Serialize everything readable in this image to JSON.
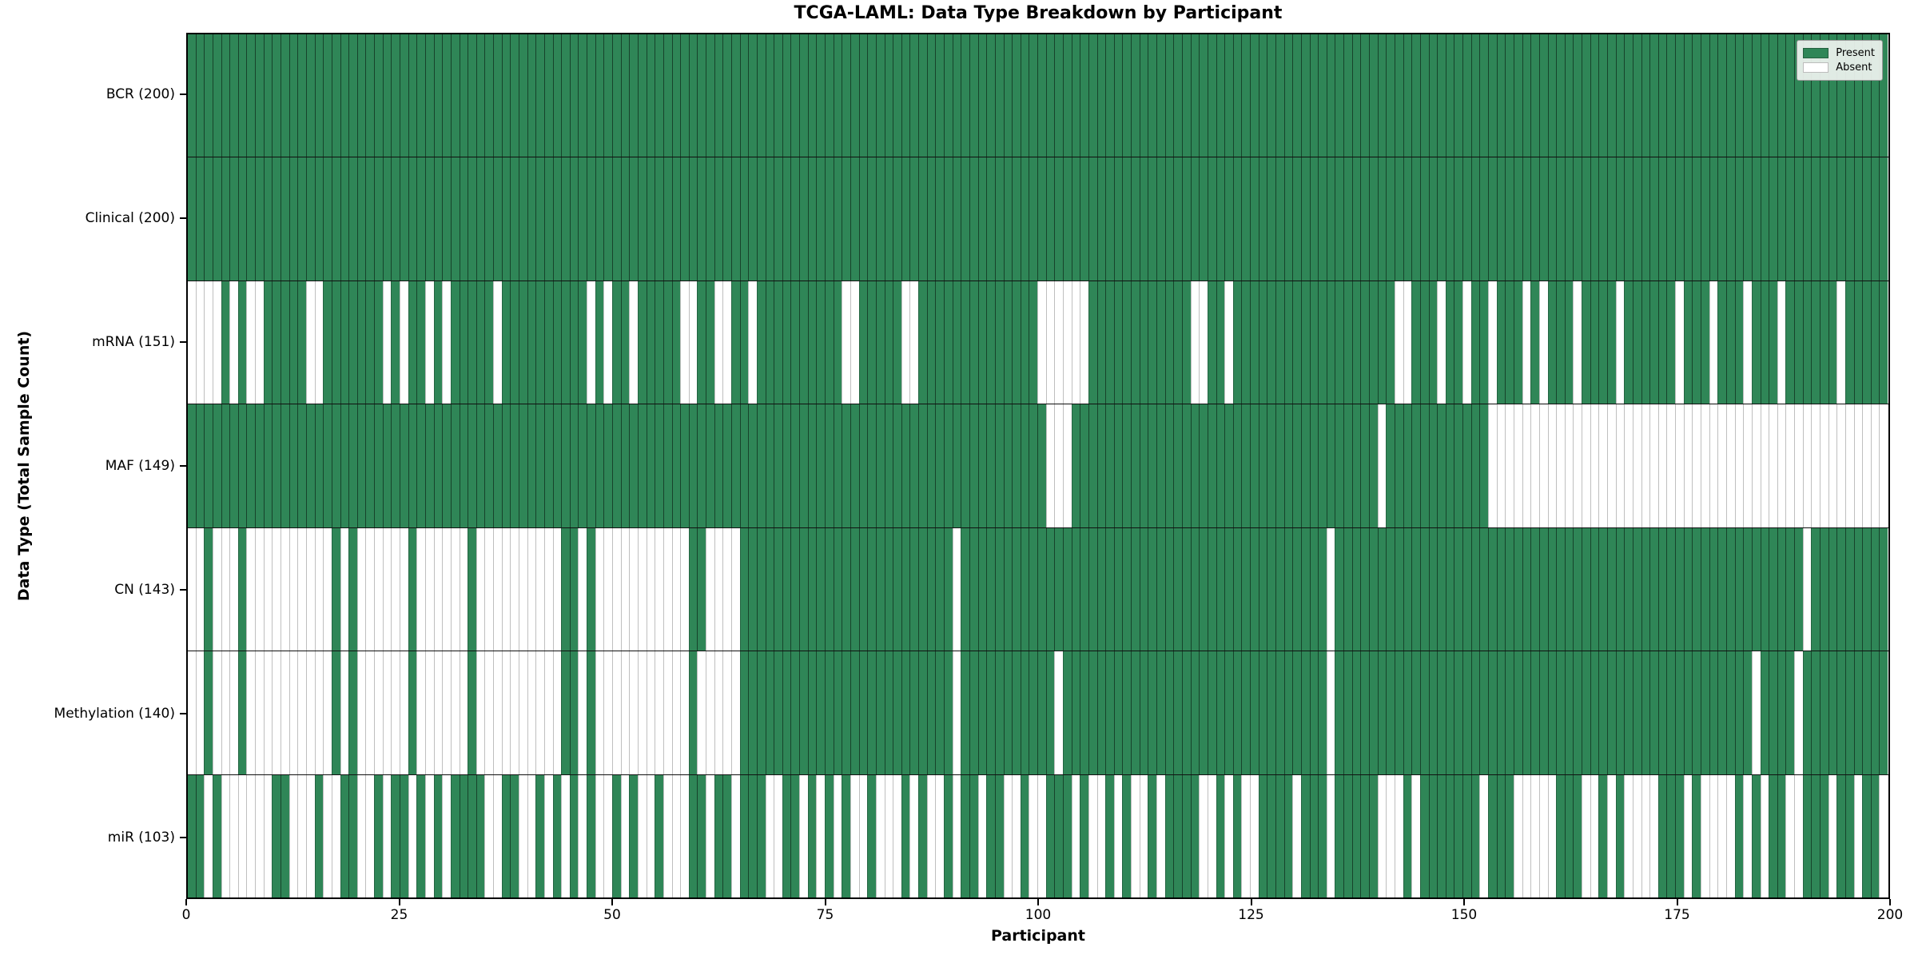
{
  "title": "TCGA-LAML: Data Type Breakdown by Participant",
  "xlabel": "Participant",
  "ylabel": "Data Type (Total Sample Count)",
  "legend": {
    "present_label": "Present",
    "absent_label": "Absent"
  },
  "colors": {
    "present": "#2f8657",
    "absent": "#ffffff",
    "grid_on_present": "rgba(0,0,0,0.5)",
    "grid_on_absent": "rgba(0,0,0,0.25)",
    "row_separator": "#111111",
    "legend_bg": "rgba(240,244,240,0.92)"
  },
  "chart_data": {
    "type": "heatmap",
    "title": "TCGA-LAML: Data Type Breakdown by Participant",
    "xlabel": "Participant",
    "ylabel": "Data Type (Total Sample Count)",
    "n_participants": 200,
    "x_ticks": [
      0,
      25,
      50,
      75,
      100,
      125,
      150,
      175,
      200
    ],
    "legend_entries": [
      "Present",
      "Absent"
    ],
    "legend_position": "upper right",
    "cell_states": {
      "present": 1,
      "absent": 0
    },
    "rows": [
      {
        "label": "BCR (200)",
        "name": "BCR",
        "present_count": 200,
        "absent_participants": []
      },
      {
        "label": "Clinical (200)",
        "name": "Clinical",
        "present_count": 200,
        "absent_participants": []
      },
      {
        "label": "mRNA (151)",
        "name": "mRNA",
        "present_count": 151,
        "absent_participants": [
          0,
          1,
          2,
          3,
          5,
          7,
          8,
          14,
          15,
          23,
          25,
          28,
          30,
          36,
          47,
          49,
          52,
          58,
          59,
          62,
          63,
          66,
          77,
          78,
          84,
          85,
          100,
          101,
          102,
          103,
          104,
          105,
          118,
          119,
          122,
          142,
          143,
          147,
          150,
          153,
          157,
          159,
          163,
          168,
          175,
          179,
          183,
          187,
          194
        ]
      },
      {
        "label": "MAF (149)",
        "name": "MAF",
        "present_count": 149,
        "absent_participants": [
          101,
          102,
          103,
          140,
          153,
          154,
          155,
          156,
          157,
          158,
          159,
          160,
          161,
          162,
          163,
          164,
          165,
          166,
          167,
          168,
          169,
          170,
          171,
          172,
          173,
          174,
          175,
          176,
          177,
          178,
          179,
          180,
          181,
          182,
          183,
          184,
          185,
          186,
          187,
          188,
          189,
          190,
          191,
          192,
          193,
          194,
          195,
          196,
          197,
          198,
          199
        ]
      },
      {
        "label": "CN (143)",
        "name": "CN",
        "present_count": 143,
        "absent_participants": [
          0,
          1,
          3,
          4,
          5,
          7,
          8,
          9,
          10,
          11,
          12,
          13,
          14,
          15,
          16,
          18,
          20,
          21,
          22,
          23,
          24,
          25,
          27,
          28,
          29,
          30,
          31,
          32,
          34,
          35,
          36,
          37,
          38,
          39,
          40,
          41,
          42,
          43,
          46,
          48,
          49,
          50,
          51,
          52,
          53,
          54,
          55,
          56,
          57,
          58,
          61,
          62,
          63,
          64,
          90,
          134,
          190
        ]
      },
      {
        "label": "Methylation (140)",
        "name": "Methylation",
        "present_count": 140,
        "absent_participants": [
          0,
          1,
          3,
          4,
          5,
          7,
          8,
          9,
          10,
          11,
          12,
          13,
          14,
          15,
          16,
          18,
          20,
          21,
          22,
          23,
          24,
          25,
          27,
          28,
          29,
          30,
          31,
          32,
          34,
          35,
          36,
          37,
          38,
          39,
          40,
          41,
          42,
          43,
          46,
          48,
          49,
          50,
          51,
          52,
          53,
          54,
          55,
          56,
          57,
          58,
          60,
          61,
          62,
          63,
          64,
          90,
          102,
          134,
          184,
          189
        ]
      },
      {
        "label": "miR (103)",
        "name": "miR",
        "present_count": 103,
        "absent_participants": [
          2,
          4,
          5,
          6,
          7,
          8,
          9,
          12,
          13,
          14,
          16,
          17,
          20,
          21,
          23,
          26,
          28,
          30,
          35,
          36,
          39,
          40,
          42,
          44,
          46,
          48,
          49,
          51,
          53,
          54,
          56,
          57,
          58,
          61,
          64,
          68,
          69,
          72,
          74,
          76,
          78,
          79,
          81,
          82,
          83,
          85,
          87,
          88,
          90,
          93,
          96,
          97,
          99,
          100,
          104,
          106,
          107,
          109,
          111,
          112,
          114,
          119,
          120,
          122,
          124,
          125,
          130,
          134,
          140,
          141,
          142,
          144,
          152,
          156,
          157,
          158,
          159,
          160,
          164,
          165,
          167,
          169,
          170,
          171,
          172,
          176,
          178,
          179,
          180,
          181,
          183,
          185,
          188,
          189,
          193,
          196,
          199
        ]
      }
    ]
  }
}
